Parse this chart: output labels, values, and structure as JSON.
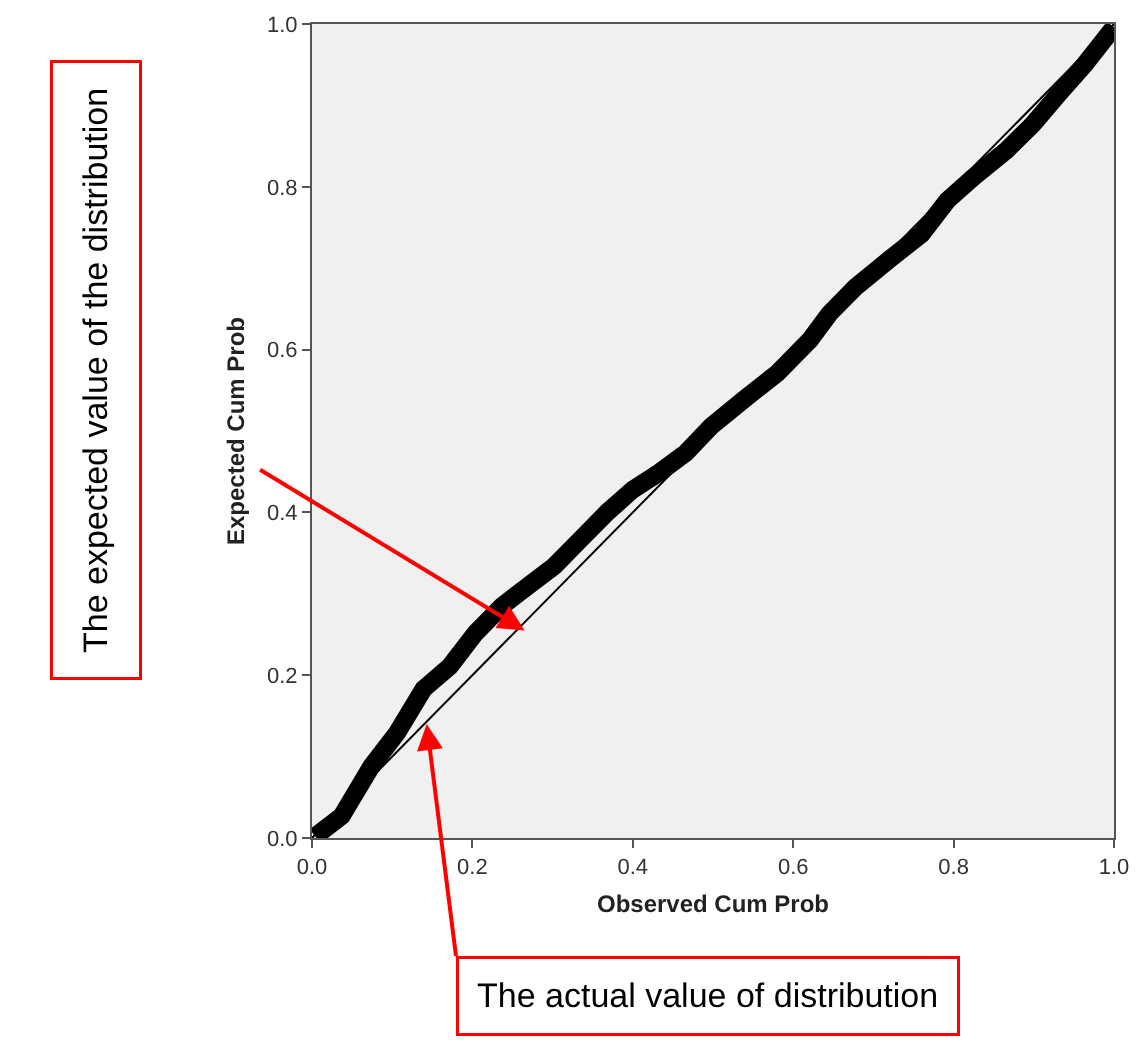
{
  "chart_data": {
    "type": "line",
    "xlabel": "Observed Cum Prob",
    "ylabel": "Expected Cum Prob",
    "xlim": [
      0,
      1
    ],
    "ylim": [
      0,
      1
    ],
    "xticks": [
      {
        "value": 0,
        "label": "0.0"
      },
      {
        "value": 0.2,
        "label": "0.2"
      },
      {
        "value": 0.4,
        "label": "0.4"
      },
      {
        "value": 0.6,
        "label": "0.6"
      },
      {
        "value": 0.8,
        "label": "0.8"
      },
      {
        "value": 1,
        "label": "1.0"
      }
    ],
    "yticks": [
      {
        "value": 0,
        "label": "0.0"
      },
      {
        "value": 0.2,
        "label": "0.2"
      },
      {
        "value": 0.4,
        "label": "0.4"
      },
      {
        "value": 0.6,
        "label": "0.6"
      },
      {
        "value": 0.8,
        "label": "0.8"
      },
      {
        "value": 1,
        "label": "1.0"
      }
    ],
    "grid": false,
    "marker": "none",
    "line_style": "solid",
    "series": [
      {
        "color": "#000000",
        "x": [
          0.004,
          0.037,
          0.074,
          0.106,
          0.139,
          0.172,
          0.204,
          0.237,
          0.27,
          0.302,
          0.335,
          0.368,
          0.4,
          0.433,
          0.466,
          0.498,
          0.539,
          0.58,
          0.621,
          0.645,
          0.678,
          0.719,
          0.76,
          0.792,
          0.825,
          0.866,
          0.899,
          0.931,
          0.964,
          1.0
        ],
        "values": [
          0.002,
          0.027,
          0.088,
          0.129,
          0.183,
          0.211,
          0.252,
          0.285,
          0.31,
          0.334,
          0.367,
          0.4,
          0.428,
          0.449,
          0.473,
          0.506,
          0.539,
          0.571,
          0.612,
          0.644,
          0.677,
          0.71,
          0.742,
          0.783,
          0.812,
          0.845,
          0.877,
          0.914,
          0.951,
          0.996
        ]
      },
      {
        "color": "#000000",
        "x": [
          0,
          1
        ],
        "values": [
          0,
          1
        ]
      }
    ],
    "annotations": [
      {
        "text": "The expected value of the distribution",
        "x": 0.265,
        "y": 0.255
      },
      {
        "text": "The actual value of distribution",
        "x": 0.143,
        "y": 0.14
      }
    ]
  }
}
